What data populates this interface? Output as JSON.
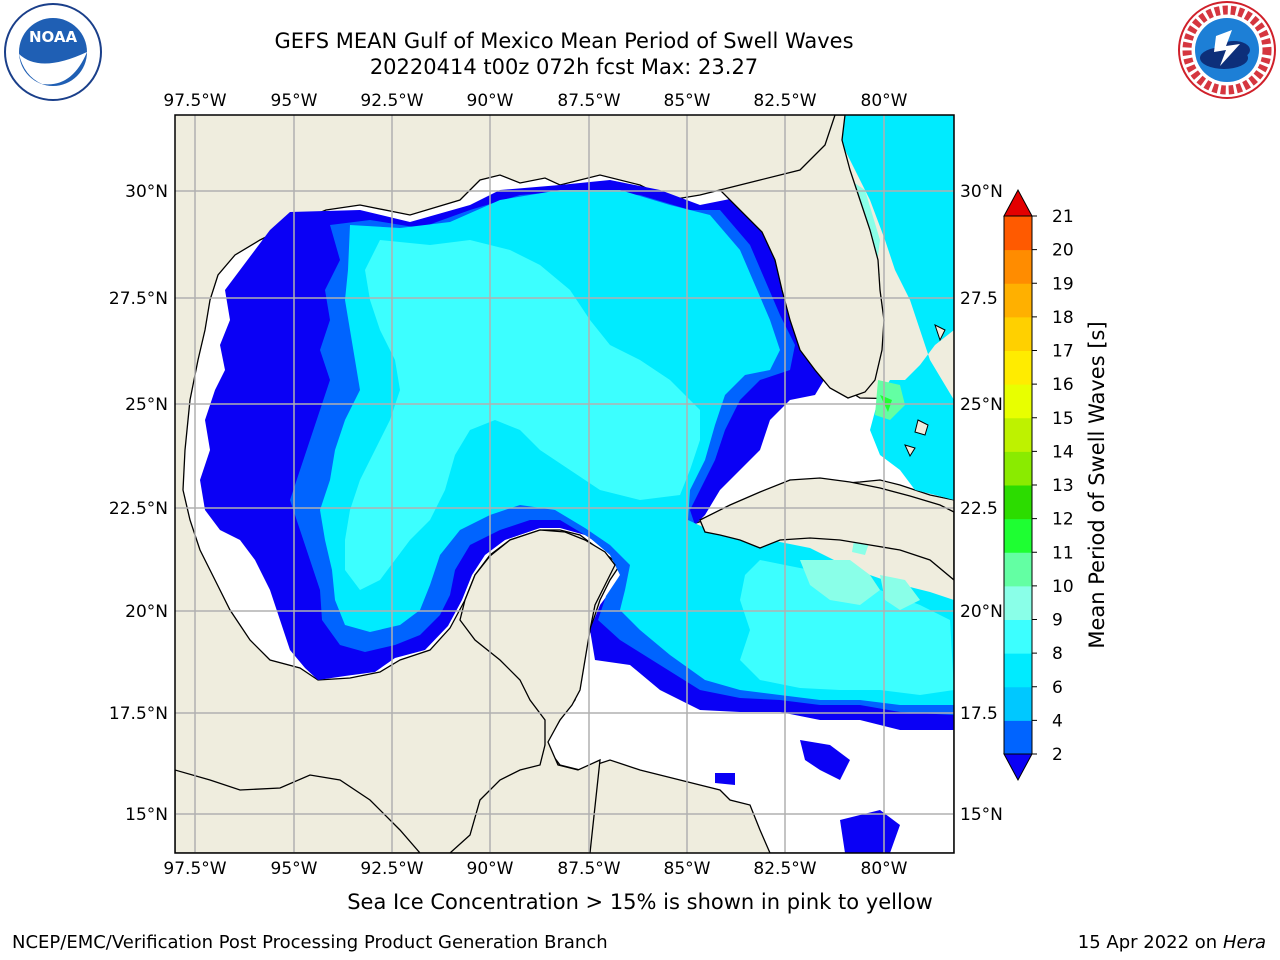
{
  "title": {
    "line1": "GEFS MEAN Gulf of Mexico Mean Period of Swell Waves",
    "line2": "20220414 t00z 072h fcst   Max: 23.27"
  },
  "logos": {
    "left": {
      "icon": "noaa-logo",
      "text": "NOAA"
    },
    "right": {
      "icon": "nws-logo",
      "text": "NATIONAL WEATHER SERVICE"
    }
  },
  "map": {
    "lon_ticks_top": [
      "97.5°W",
      "95°W",
      "92.5°W",
      "90°W",
      "87.5°W",
      "85°W",
      "82.5°W",
      "80°W"
    ],
    "lon_ticks_bottom": [
      "97.5°W",
      "95°W",
      "92.5°W",
      "90°W",
      "87.5°W",
      "85°W",
      "82.5°W",
      "80°W"
    ],
    "lat_ticks_left": [
      "30°N",
      "27.5°N",
      "25°N",
      "22.5°N",
      "20°N",
      "17.5°N",
      "15°N"
    ],
    "lat_ticks_right": [
      "30°N",
      "27.5",
      "25°N",
      "22.5",
      "20°N",
      "17.5",
      "15°N"
    ],
    "land_color": "#efedde",
    "grid_color": "#b0b0b0"
  },
  "colorbar": {
    "label": "Mean Period of Swell Waves [s]",
    "ticks": [
      "2",
      "4",
      "6",
      "8",
      "9",
      "10",
      "11",
      "12",
      "13",
      "14",
      "15",
      "16",
      "17",
      "18",
      "19",
      "20",
      "21"
    ],
    "colors": [
      "#0a00f5",
      "#0064ff",
      "#00c8ff",
      "#00ebff",
      "#3cffff",
      "#8affe8",
      "#63ffa3",
      "#1eff32",
      "#2cdc00",
      "#8aeb00",
      "#bef200",
      "#e8ff00",
      "#ffec00",
      "#ffd000",
      "#ffb000",
      "#ff8c00",
      "#ff5a00",
      "#ff2a00",
      "#e30000"
    ]
  },
  "footnote": "Sea Ice Concentration > 15% is shown in pink to yellow",
  "credits": {
    "left": "NCEP/EMC/Verification Post Processing Product Generation Branch",
    "right_date": "15 Apr 2022 on",
    "right_host": "Hera"
  }
}
